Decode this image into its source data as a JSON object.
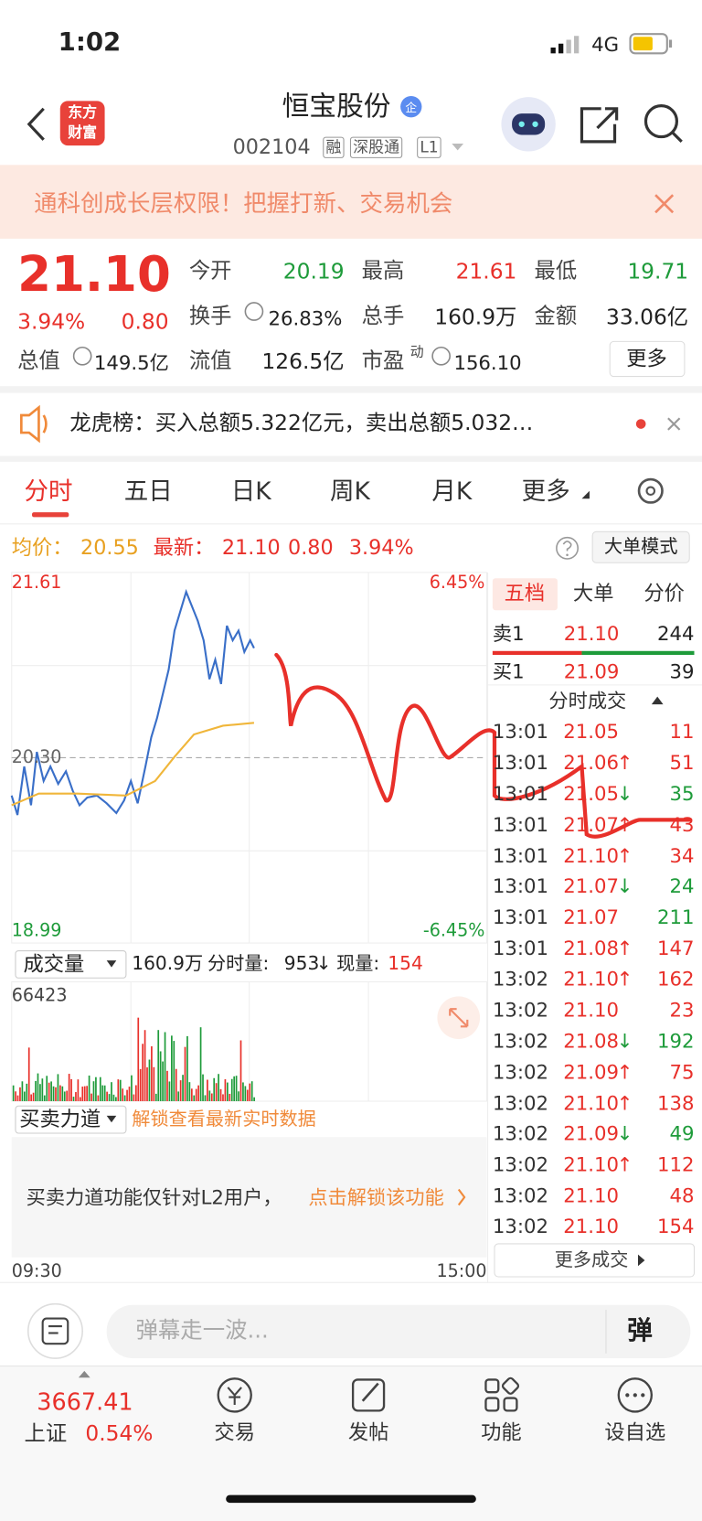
{
  "status": {
    "time": "1:02",
    "network": "4G"
  },
  "header": {
    "logo": [
      "东方",
      "财富"
    ],
    "title": "恒宝股份",
    "badge": "企",
    "code": "002104",
    "tags": [
      "融",
      "深股通",
      "L1"
    ]
  },
  "banner": {
    "text": "通科创成长层权限！把握打新、交易机会"
  },
  "quote": {
    "price": "21.10",
    "change_pct": "3.94%",
    "change": "0.80",
    "fields": [
      {
        "label": "今开",
        "value": "20.19",
        "tone": "down"
      },
      {
        "label": "最高",
        "value": "21.61",
        "tone": "up"
      },
      {
        "label": "最低",
        "value": "19.71",
        "tone": "down"
      },
      {
        "label": "换手",
        "value": "26.83%"
      },
      {
        "label": "总手",
        "value": "160.9万"
      },
      {
        "label": "金额",
        "value": "33.06亿"
      },
      {
        "label": "总值",
        "value": "149.5亿"
      },
      {
        "label": "流值",
        "value": "126.5亿"
      },
      {
        "label": "市盈",
        "sup": "动",
        "value": "156.10"
      }
    ],
    "more": "更多"
  },
  "notice": {
    "text": "龙虎榜：买入总额5.322亿元，卖出总额5.032…"
  },
  "tabs": [
    "分时",
    "五日",
    "日K",
    "周K",
    "月K",
    "更多"
  ],
  "chart": {
    "avg_label": "均价：",
    "avg": "20.55",
    "latest_label": "最新：",
    "latest": "21.10",
    "change": "0.80",
    "change_pct": "3.94%",
    "mode_button": "大单模式",
    "price_high": "21.61",
    "price_mid": "20.30",
    "price_low": "18.99",
    "pct_high": "6.45%",
    "pct_low": "-6.45%",
    "time_start": "09:30",
    "time_end": "15:00"
  },
  "volume": {
    "selector": "成交量",
    "total": "160.9万",
    "minute_label": "分时量:",
    "minute": "953",
    "arrow": "↓",
    "current_label": "现量:",
    "current": "154",
    "max": "66423"
  },
  "power": {
    "selector": "买卖力道",
    "unlock": "解锁查看最新实时数据",
    "message": "买卖力道功能仅针对L2用户，",
    "link": "点击解锁该功能"
  },
  "panel": {
    "tabs": [
      "五档",
      "大单",
      "分价"
    ],
    "sell": {
      "label": "卖1",
      "price": "21.10",
      "volume": "244"
    },
    "buy": {
      "label": "买1",
      "price": "21.09",
      "volume": "39"
    },
    "trades_title": "分时成交",
    "trades": [
      {
        "time": "13:01",
        "price": "21.05",
        "volume": "11",
        "tone": "up"
      },
      {
        "time": "13:01",
        "price": "21.06",
        "dir": "↑",
        "volume": "51",
        "tone": "up"
      },
      {
        "time": "13:01",
        "price": "21.05",
        "dir": "↓",
        "volume": "35",
        "tone": "down"
      },
      {
        "time": "13:01",
        "price": "21.07",
        "dir": "↑",
        "volume": "43",
        "tone": "up"
      },
      {
        "time": "13:01",
        "price": "21.10",
        "dir": "↑",
        "volume": "34",
        "tone": "up"
      },
      {
        "time": "13:01",
        "price": "21.07",
        "dir": "↓",
        "volume": "24",
        "tone": "down"
      },
      {
        "time": "13:01",
        "price": "21.07",
        "volume": "211",
        "tone": "down"
      },
      {
        "time": "13:01",
        "price": "21.08",
        "dir": "↑",
        "volume": "147",
        "tone": "up"
      },
      {
        "time": "13:02",
        "price": "21.10",
        "dir": "↑",
        "volume": "162",
        "tone": "up"
      },
      {
        "time": "13:02",
        "price": "21.10",
        "volume": "23",
        "tone": "up"
      },
      {
        "time": "13:02",
        "price": "21.08",
        "dir": "↓",
        "volume": "192",
        "tone": "down"
      },
      {
        "time": "13:02",
        "price": "21.09",
        "dir": "↑",
        "volume": "75",
        "tone": "up"
      },
      {
        "time": "13:02",
        "price": "21.10",
        "dir": "↑",
        "volume": "138",
        "tone": "up"
      },
      {
        "time": "13:02",
        "price": "21.09",
        "dir": "↓",
        "volume": "49",
        "tone": "down"
      },
      {
        "time": "13:02",
        "price": "21.10",
        "dir": "↑",
        "volume": "112",
        "tone": "up"
      },
      {
        "time": "13:02",
        "price": "21.10",
        "volume": "48",
        "tone": "up"
      },
      {
        "time": "13:02",
        "price": "21.10",
        "volume": "154",
        "tone": "up"
      }
    ],
    "more": "更多成交"
  },
  "comment": {
    "placeholder": "弹幕走一波...",
    "button": "弹"
  },
  "bottom": {
    "index_value": "3667.41",
    "index_name": "上证",
    "index_pct": "0.54%",
    "nav": [
      "交易",
      "发帖",
      "功能",
      "设自选"
    ]
  }
}
